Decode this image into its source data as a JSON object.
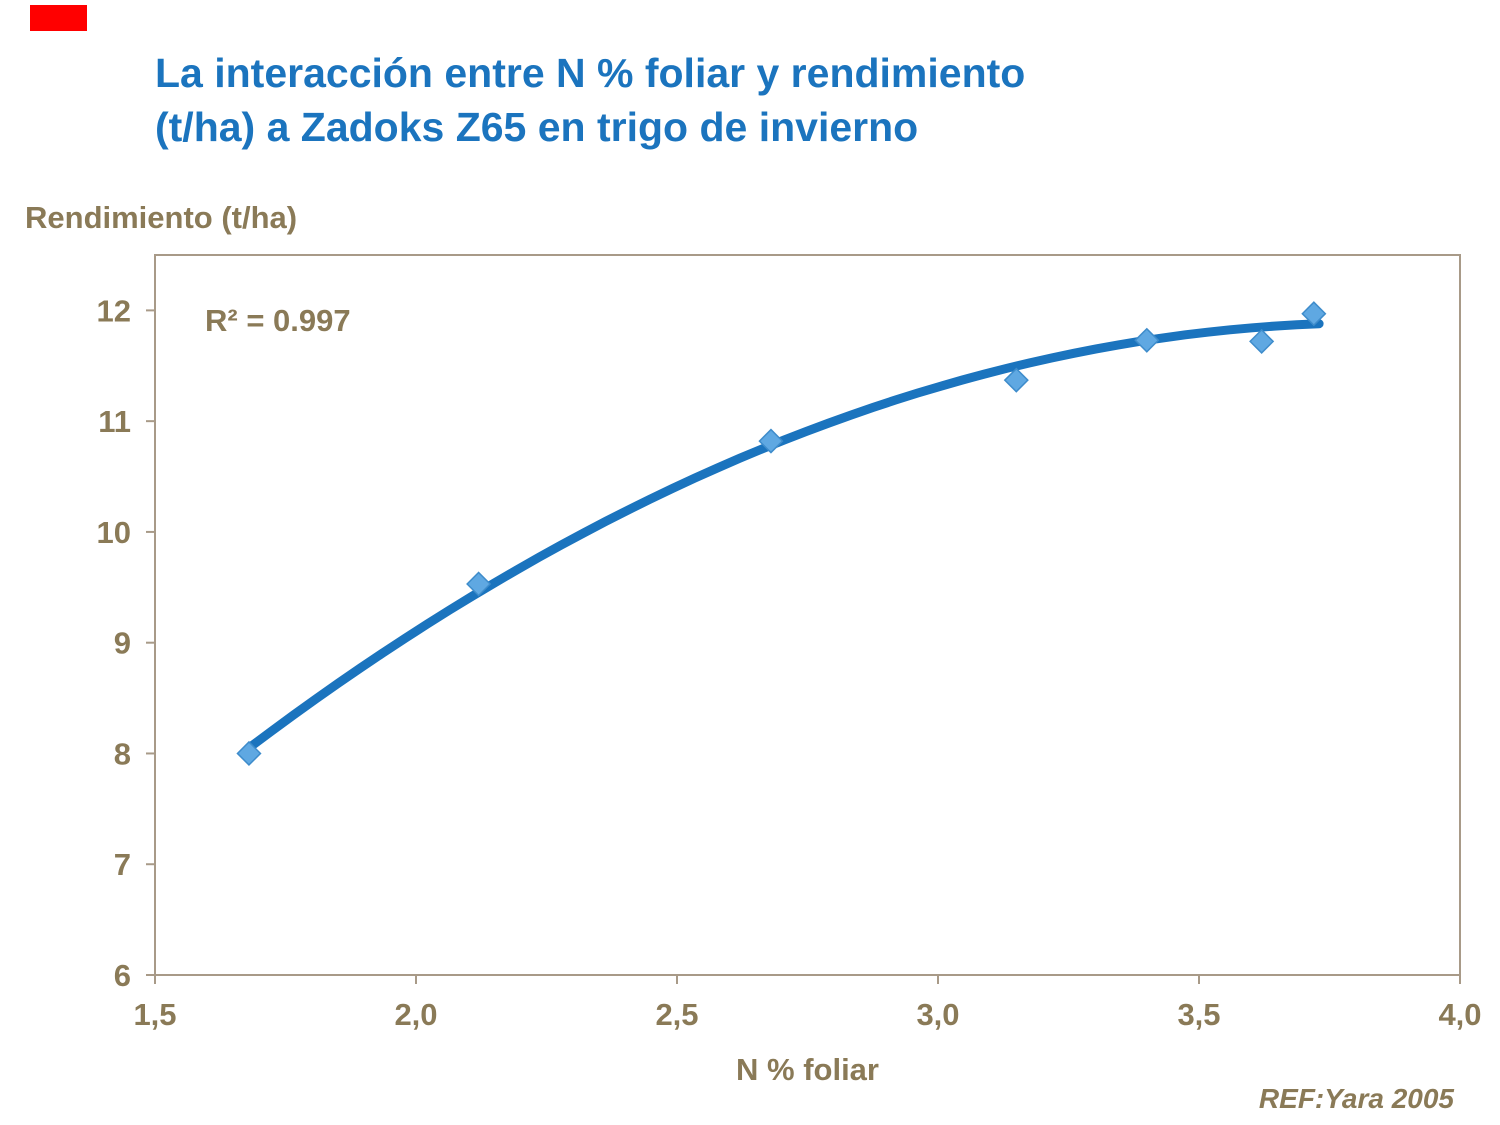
{
  "slide": {
    "title_lines": [
      "La interacción entre N % foliar y rendimiento",
      "(t/ha) a Zadoks Z65 en trigo de invierno"
    ],
    "ref": "REF:Yara 2005"
  },
  "chart_data": {
    "type": "scatter",
    "title": "La interacción entre N % foliar y rendimiento (t/ha) a Zadoks Z65 en trigo de invierno",
    "xlabel": "N % foliar",
    "ylabel": "Rendimiento (t/ha)",
    "annotation": "R² = 0.997",
    "xlim": [
      1.5,
      4.0
    ],
    "ylim": [
      6,
      12.5
    ],
    "x_ticks": [
      1.5,
      2.0,
      2.5,
      3.0,
      3.5,
      4.0
    ],
    "x_tick_labels": [
      "1,5",
      "2,0",
      "2,5",
      "3,0",
      "3,5",
      "4,0"
    ],
    "y_ticks": [
      6,
      7,
      8,
      9,
      10,
      11,
      12
    ],
    "y_tick_labels": [
      "6",
      "7",
      "8",
      "9",
      "10",
      "11",
      "12"
    ],
    "grid": false,
    "legend": false,
    "series": [
      {
        "name": "observed",
        "type": "scatter",
        "marker": "diamond",
        "color": "#5FA8E2",
        "marker_edge": "#3E8CCB",
        "points": [
          [
            1.68,
            8.0
          ],
          [
            2.12,
            9.53
          ],
          [
            2.68,
            10.82
          ],
          [
            3.15,
            11.37
          ],
          [
            3.4,
            11.73
          ],
          [
            3.62,
            11.72
          ],
          [
            3.72,
            11.97
          ]
        ]
      },
      {
        "name": "trend_fit",
        "type": "line",
        "color": "#1B74BE",
        "poly": {
          "a": -0.244,
          "b": 6.319,
          "c": -0.8227
        },
        "x_range": [
          1.68,
          3.73
        ],
        "r_squared": 0.997
      }
    ],
    "colors": {
      "title": "#1B74BE",
      "axis_text": "#8A7A57",
      "plot_border": "#A89A88",
      "accent_red": "#FF0000",
      "background": "#FFFFFF"
    }
  }
}
